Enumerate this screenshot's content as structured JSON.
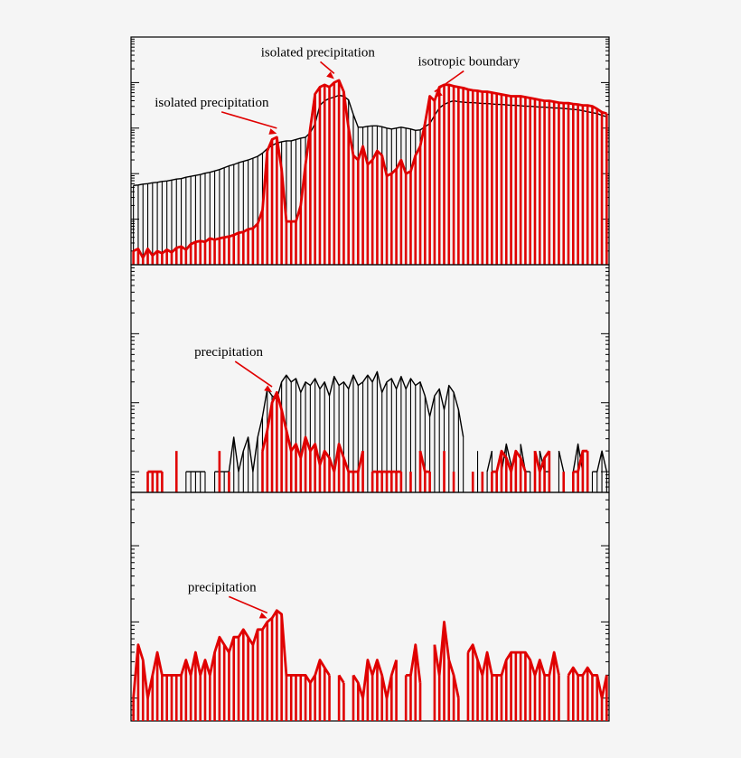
{
  "chart_data": [
    {
      "type": "bar",
      "log_scale": true,
      "x_index": [
        0,
        1,
        2,
        3,
        4,
        5,
        6,
        7,
        8,
        9,
        10,
        11,
        12,
        13,
        14,
        15,
        16,
        17,
        18,
        19,
        20,
        21,
        22,
        23,
        24,
        25,
        26,
        27,
        28,
        29,
        30,
        31,
        32,
        33,
        34,
        35,
        36,
        37,
        38,
        39,
        40,
        41,
        42,
        43,
        44,
        45,
        46,
        47,
        48,
        49,
        50,
        51,
        52,
        53,
        54,
        55,
        56,
        57,
        58,
        59,
        60,
        61,
        62,
        63,
        64,
        65,
        66,
        67,
        68,
        69,
        70,
        71,
        72,
        73,
        74,
        75,
        76,
        77,
        78,
        79,
        80,
        81,
        82,
        83,
        84,
        85,
        86,
        87,
        88,
        89,
        90,
        91,
        92,
        93,
        94,
        95,
        96,
        97,
        98,
        99
      ],
      "ylim_log10": [
        0,
        5
      ],
      "series": [
        {
          "color": "#000000",
          "style": "black hatched outline",
          "values_log10": [
            1.74,
            1.75,
            1.77,
            1.78,
            1.8,
            1.81,
            1.83,
            1.84,
            1.86,
            1.88,
            1.89,
            1.92,
            1.94,
            1.96,
            1.98,
            2.01,
            2.03,
            2.06,
            2.09,
            2.13,
            2.17,
            2.2,
            2.24,
            2.27,
            2.3,
            2.34,
            2.38,
            2.45,
            2.55,
            2.62,
            2.67,
            2.7,
            2.72,
            2.72,
            2.75,
            2.78,
            2.8,
            2.9,
            3.1,
            3.5,
            3.6,
            3.65,
            3.68,
            3.72,
            3.7,
            3.62,
            3.3,
            3.02,
            3.02,
            3.04,
            3.05,
            3.05,
            3.03,
            3.0,
            2.98,
            3.0,
            3.02,
            3.0,
            2.98,
            2.95,
            2.96,
            3.03,
            3.1,
            3.28,
            3.44,
            3.52,
            3.57,
            3.6,
            3.58,
            3.57,
            3.56,
            3.56,
            3.55,
            3.54,
            3.54,
            3.53,
            3.52,
            3.52,
            3.51,
            3.5,
            3.5,
            3.49,
            3.48,
            3.48,
            3.47,
            3.46,
            3.46,
            3.45,
            3.44,
            3.44,
            3.43,
            3.42,
            3.41,
            3.4,
            3.38,
            3.36,
            3.34,
            3.32,
            3.28,
            3.25
          ]
        },
        {
          "color": "#e00000",
          "style": "red bars",
          "values_log10": [
            0.3,
            0.35,
            0.15,
            0.35,
            0.2,
            0.3,
            0.25,
            0.33,
            0.27,
            0.37,
            0.4,
            0.33,
            0.45,
            0.5,
            0.52,
            0.5,
            0.58,
            0.55,
            0.58,
            0.6,
            0.62,
            0.65,
            0.7,
            0.72,
            0.78,
            0.8,
            0.9,
            1.2,
            2.5,
            2.75,
            2.8,
            2.1,
            0.95,
            0.95,
            0.95,
            1.3,
            2.2,
            3.0,
            3.75,
            3.9,
            3.95,
            3.9,
            4.0,
            4.05,
            3.8,
            3.0,
            2.4,
            2.3,
            2.6,
            2.2,
            2.3,
            2.5,
            2.4,
            1.95,
            2.0,
            2.1,
            2.3,
            2.0,
            2.05,
            2.4,
            2.6,
            3.1,
            3.7,
            3.6,
            3.9,
            3.95,
            3.95,
            3.92,
            3.9,
            3.88,
            3.85,
            3.83,
            3.82,
            3.8,
            3.8,
            3.78,
            3.76,
            3.74,
            3.72,
            3.7,
            3.7,
            3.7,
            3.68,
            3.66,
            3.64,
            3.62,
            3.6,
            3.6,
            3.58,
            3.56,
            3.55,
            3.55,
            3.53,
            3.52,
            3.5,
            3.5,
            3.48,
            3.42,
            3.35,
            3.32
          ]
        }
      ],
      "annotations": [
        {
          "text": "isolated precipitation",
          "points_to_index": 30
        },
        {
          "text": "isolated precipitation",
          "points_to_index": 42
        },
        {
          "text": "isotropic boundary",
          "points_to_index": 63
        }
      ]
    },
    {
      "type": "bar",
      "log_scale": true,
      "x_index": [
        0,
        1,
        2,
        3,
        4,
        5,
        6,
        7,
        8,
        9,
        10,
        11,
        12,
        13,
        14,
        15,
        16,
        17,
        18,
        19,
        20,
        21,
        22,
        23,
        24,
        25,
        26,
        27,
        28,
        29,
        30,
        31,
        32,
        33,
        34,
        35,
        36,
        37,
        38,
        39,
        40,
        41,
        42,
        43,
        44,
        45,
        46,
        47,
        48,
        49,
        50,
        51,
        52,
        53,
        54,
        55,
        56,
        57,
        58,
        59,
        60,
        61,
        62,
        63,
        64,
        65,
        66,
        67,
        68,
        69,
        70,
        71,
        72,
        73,
        74,
        75,
        76,
        77,
        78,
        79,
        80,
        81,
        82,
        83,
        84,
        85,
        86,
        87,
        88,
        89,
        90,
        91,
        92,
        93,
        94,
        95,
        96,
        97,
        98,
        99
      ],
      "ylim_log10": [
        -0.3,
        3
      ],
      "series": [
        {
          "color": "#000000",
          "style": "black hatched outline",
          "values_log10": [
            null,
            null,
            null,
            0,
            0,
            0,
            0,
            null,
            null,
            null,
            null,
            0,
            0,
            0,
            0,
            0,
            null,
            0,
            0,
            0,
            0,
            0.5,
            0,
            0.3,
            0.5,
            0,
            0.5,
            0.8,
            1.2,
            1.1,
            1.05,
            1.3,
            1.4,
            1.3,
            1.35,
            1.15,
            1.3,
            1.25,
            1.35,
            1.2,
            1.3,
            1.1,
            1.38,
            1.25,
            1.3,
            1.2,
            1.4,
            1.25,
            1.3,
            1.4,
            1.3,
            1.45,
            1.15,
            1.3,
            1.35,
            1.2,
            1.38,
            1.2,
            1.35,
            1.25,
            1.3,
            1.1,
            0.8,
            1.1,
            1.2,
            0.9,
            1.25,
            1.15,
            0.9,
            0.5,
            null,
            null,
            0.3,
            null,
            0,
            0.3,
            null,
            0,
            0.4,
            0.1,
            null,
            0.4,
            0,
            0,
            null,
            0.3,
            0,
            0,
            null,
            0.3,
            0,
            null,
            0,
            0.4,
            0,
            null,
            0,
            0,
            0.3,
            0
          ]
        },
        {
          "color": "#e00000",
          "style": "red bars",
          "values_log10": [
            null,
            null,
            null,
            0,
            0,
            0,
            0,
            null,
            null,
            0.3,
            null,
            null,
            null,
            null,
            null,
            null,
            null,
            null,
            0.3,
            null,
            0,
            null,
            null,
            null,
            null,
            null,
            null,
            0.3,
            0.6,
            1.0,
            1.15,
            0.9,
            0.6,
            0.3,
            0.4,
            0.2,
            0.5,
            0.3,
            0.4,
            0.1,
            0.3,
            0.2,
            0,
            0.4,
            0.2,
            0,
            0,
            0,
            0.3,
            null,
            0,
            0,
            0,
            0,
            0,
            0,
            0,
            null,
            0,
            null,
            0.3,
            0,
            0,
            null,
            null,
            0.3,
            null,
            0,
            null,
            null,
            null,
            0,
            null,
            0,
            null,
            0,
            0,
            0.3,
            0.2,
            0,
            0.3,
            0.2,
            0,
            null,
            0.3,
            0,
            0.2,
            0.3,
            null,
            null,
            0,
            null,
            0,
            0,
            0.3,
            0.3,
            null,
            null,
            null,
            null
          ]
        }
      ],
      "annotations": [
        {
          "text": "precipitation",
          "points_to_index": 29
        }
      ]
    },
    {
      "type": "bar",
      "log_scale": true,
      "x_index": [
        0,
        1,
        2,
        3,
        4,
        5,
        6,
        7,
        8,
        9,
        10,
        11,
        12,
        13,
        14,
        15,
        16,
        17,
        18,
        19,
        20,
        21,
        22,
        23,
        24,
        25,
        26,
        27,
        28,
        29,
        30,
        31,
        32,
        33,
        34,
        35,
        36,
        37,
        38,
        39,
        40,
        41,
        42,
        43,
        44,
        45,
        46,
        47,
        48,
        49,
        50,
        51,
        52,
        53,
        54,
        55,
        56,
        57,
        58,
        59,
        60,
        61,
        62,
        63,
        64,
        65,
        66,
        67,
        68,
        69,
        70,
        71,
        72,
        73,
        74,
        75,
        76,
        77,
        78,
        79,
        80,
        81,
        82,
        83,
        84,
        85,
        86,
        87,
        88,
        89,
        90,
        91,
        92,
        93,
        94,
        95,
        96,
        97,
        98,
        99
      ],
      "ylim_log10": [
        -0.3,
        2.7
      ],
      "series": [
        {
          "color": "#e00000",
          "style": "red bars",
          "values_log10": [
            0,
            0.7,
            0.5,
            0,
            0.3,
            0.6,
            0.3,
            0.3,
            0.3,
            0.3,
            0.3,
            0.5,
            0.3,
            0.6,
            0.3,
            0.5,
            0.3,
            0.6,
            0.8,
            0.7,
            0.6,
            0.8,
            0.8,
            0.9,
            0.8,
            0.7,
            0.9,
            0.9,
            1.0,
            1.05,
            1.15,
            1.1,
            0.3,
            0.3,
            0.3,
            0.3,
            0.3,
            0.2,
            0.3,
            0.5,
            0.4,
            0.3,
            null,
            0.3,
            0.2,
            null,
            0.3,
            0.2,
            0,
            0.5,
            0.3,
            0.5,
            0.3,
            0,
            0.3,
            0.5,
            null,
            0.3,
            0.3,
            0.7,
            0.2,
            null,
            null,
            0.7,
            0.3,
            1.0,
            0.5,
            0.3,
            0,
            null,
            0.6,
            0.7,
            0.5,
            0.3,
            0.6,
            0.3,
            0.3,
            0.3,
            0.5,
            0.6,
            0.6,
            0.6,
            0.6,
            0.5,
            0.3,
            0.5,
            0.3,
            0.3,
            0.6,
            0.3,
            null,
            0.3,
            0.4,
            0.3,
            0.3,
            0.4,
            0.3,
            0.3,
            0,
            0.3
          ]
        }
      ],
      "annotations": [
        {
          "text": "precipitation",
          "points_to_index": 28
        }
      ]
    }
  ]
}
